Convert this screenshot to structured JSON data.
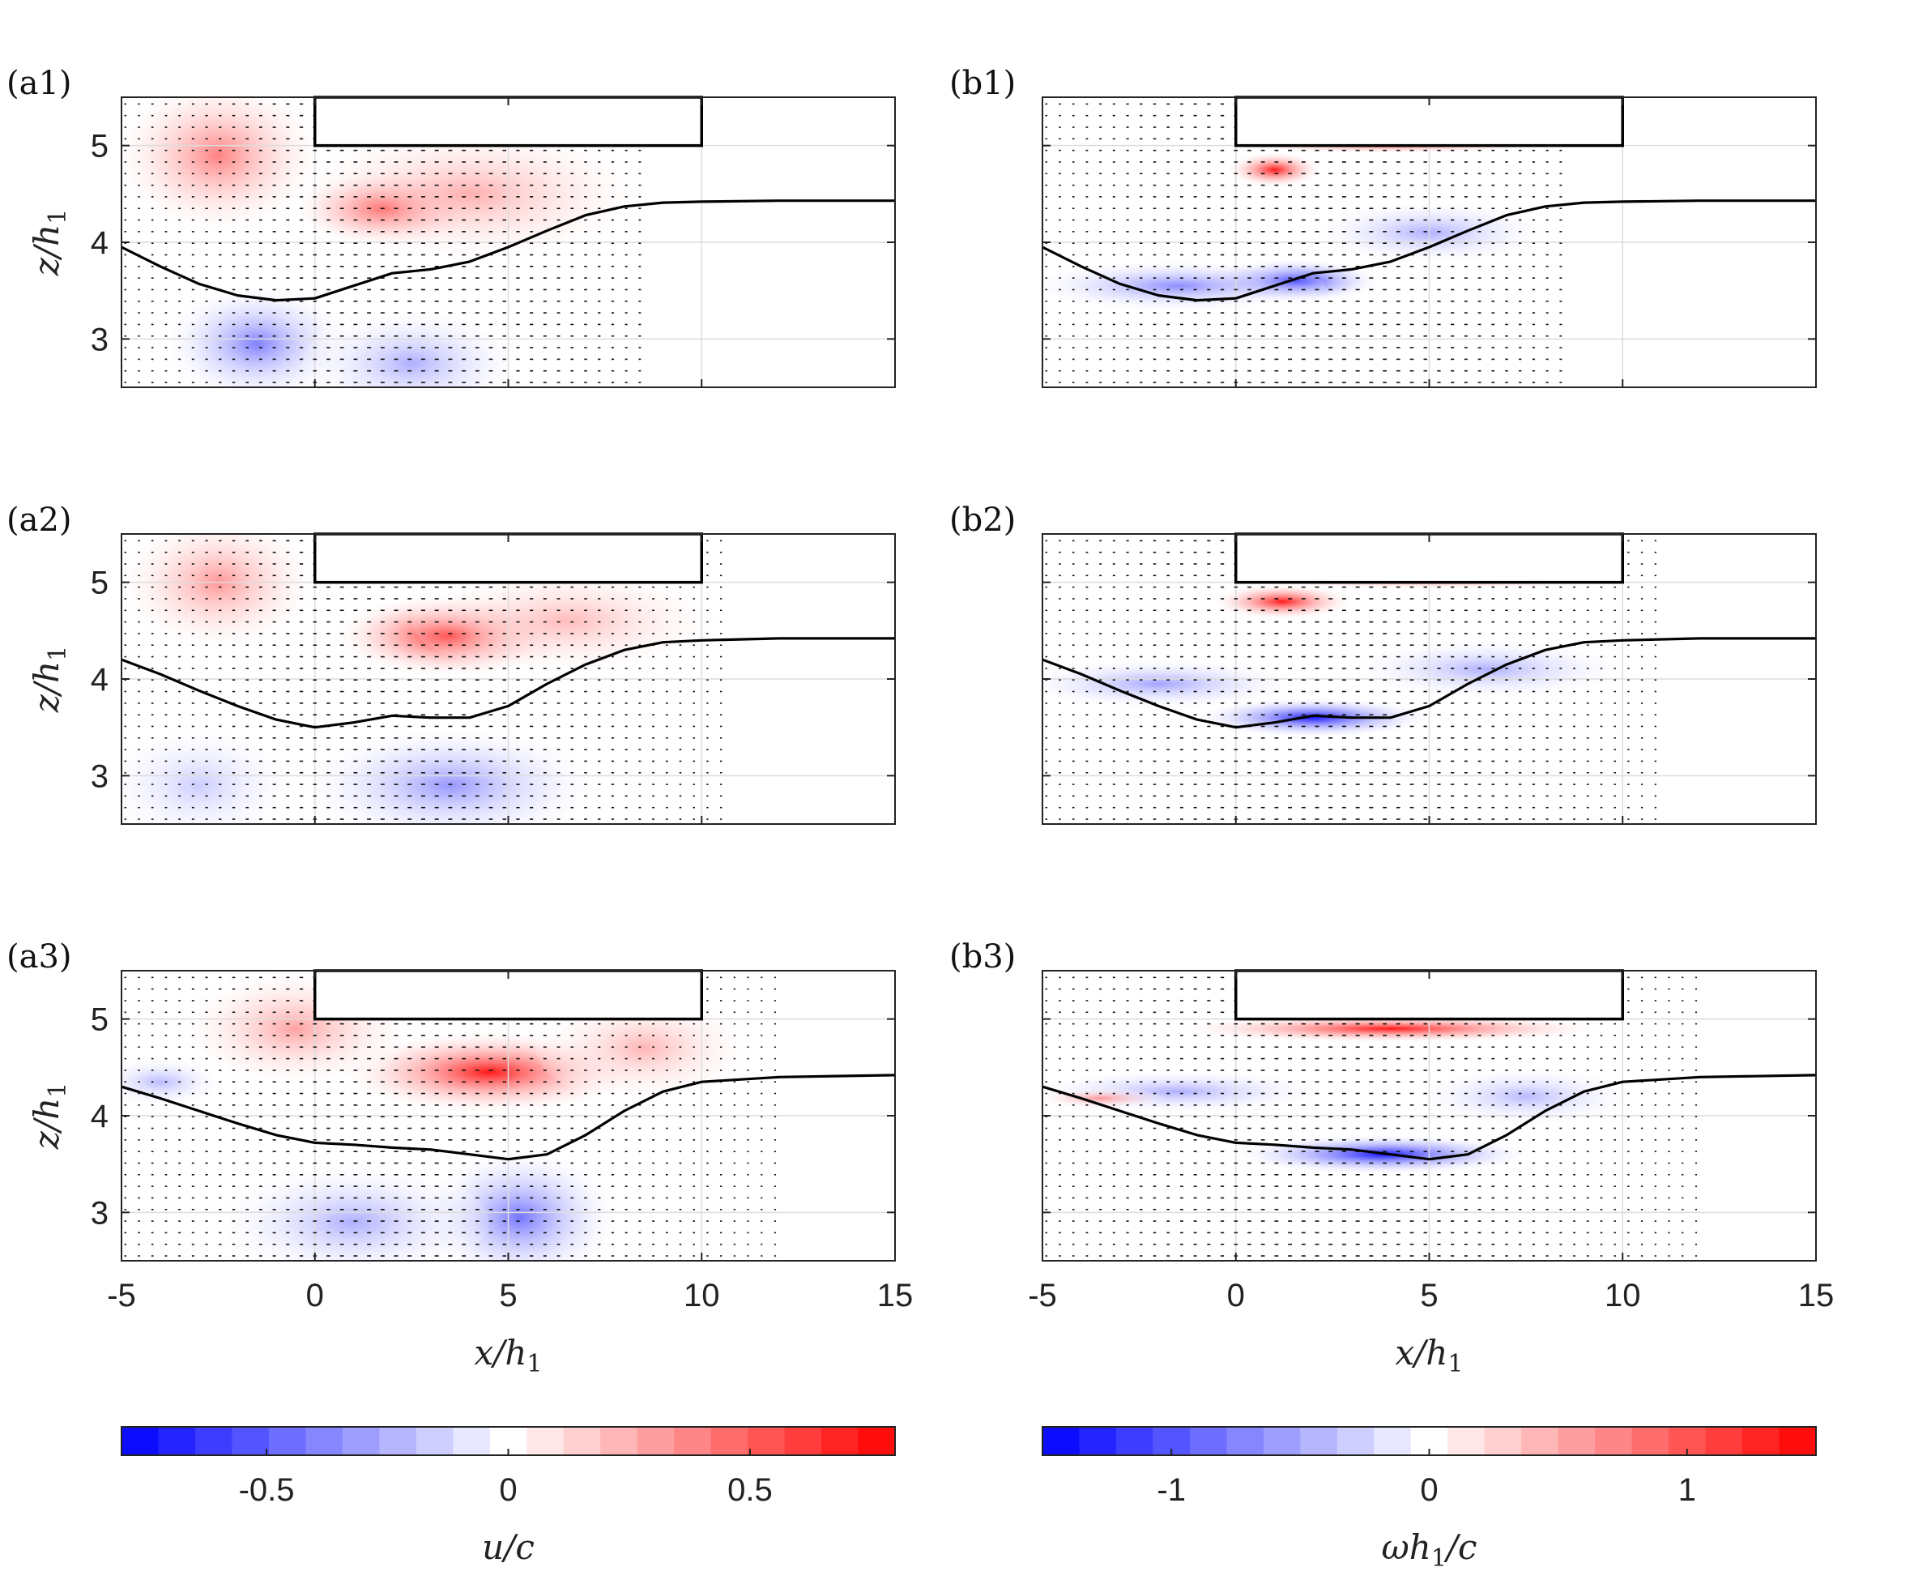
{
  "chart_data": {
    "type": "contour-quiver",
    "x_range": [
      -5,
      15
    ],
    "z_range": [
      2.5,
      5.5
    ],
    "x_ticks": [
      -5,
      0,
      5,
      10,
      15
    ],
    "z_ticks": [
      3,
      4,
      5
    ],
    "xlabel": "x/h",
    "xlabel_sub": "1",
    "ylabel": "z/h",
    "ylabel_sub": "1",
    "obstacle": {
      "x": [
        0,
        10
      ],
      "z": [
        5.0,
        5.5
      ]
    },
    "panels": [
      {
        "id": "a1",
        "label": "(a1)",
        "field": "u/c",
        "interface_x": [
          -5,
          -4,
          -3,
          -2,
          -1,
          0,
          1,
          2,
          3,
          4,
          5,
          6,
          7,
          8,
          9,
          10,
          12,
          15
        ],
        "interface_z": [
          3.95,
          3.75,
          3.57,
          3.45,
          3.4,
          3.42,
          3.55,
          3.68,
          3.72,
          3.8,
          3.95,
          4.12,
          4.28,
          4.37,
          4.41,
          4.42,
          4.43,
          4.43
        ]
      },
      {
        "id": "a2",
        "label": "(a2)",
        "field": "u/c",
        "interface_x": [
          -5,
          -4,
          -3,
          -2,
          -1,
          0,
          1,
          2,
          3,
          4,
          5,
          6,
          7,
          8,
          9,
          10,
          12,
          15
        ],
        "interface_z": [
          4.2,
          4.05,
          3.88,
          3.72,
          3.58,
          3.5,
          3.55,
          3.62,
          3.6,
          3.6,
          3.72,
          3.95,
          4.15,
          4.3,
          4.38,
          4.4,
          4.42,
          4.42
        ]
      },
      {
        "id": "a3",
        "label": "(a3)",
        "field": "u/c",
        "interface_x": [
          -5,
          -4,
          -3,
          -2,
          -1,
          0,
          1,
          2,
          3,
          4,
          5,
          6,
          7,
          8,
          9,
          10,
          12,
          15
        ],
        "interface_z": [
          4.3,
          4.18,
          4.05,
          3.92,
          3.8,
          3.72,
          3.7,
          3.67,
          3.65,
          3.6,
          3.55,
          3.6,
          3.8,
          4.05,
          4.25,
          4.35,
          4.4,
          4.42
        ]
      },
      {
        "id": "b1",
        "label": "(b1)",
        "field": "ωh1/c",
        "interface_x": [
          -5,
          -4,
          -3,
          -2,
          -1,
          0,
          1,
          2,
          3,
          4,
          5,
          6,
          7,
          8,
          9,
          10,
          12,
          15
        ],
        "interface_z": [
          3.95,
          3.75,
          3.57,
          3.45,
          3.4,
          3.42,
          3.55,
          3.68,
          3.72,
          3.8,
          3.95,
          4.12,
          4.28,
          4.37,
          4.41,
          4.42,
          4.43,
          4.43
        ]
      },
      {
        "id": "b2",
        "label": "(b2)",
        "field": "ωh1/c",
        "interface_x": [
          -5,
          -4,
          -3,
          -2,
          -1,
          0,
          1,
          2,
          3,
          4,
          5,
          6,
          7,
          8,
          9,
          10,
          12,
          15
        ],
        "interface_z": [
          4.2,
          4.05,
          3.88,
          3.72,
          3.58,
          3.5,
          3.55,
          3.62,
          3.6,
          3.6,
          3.72,
          3.95,
          4.15,
          4.3,
          4.38,
          4.4,
          4.42,
          4.42
        ]
      },
      {
        "id": "b3",
        "label": "(b3)",
        "field": "ωh1/c",
        "interface_x": [
          -5,
          -4,
          -3,
          -2,
          -1,
          0,
          1,
          2,
          3,
          4,
          5,
          6,
          7,
          8,
          9,
          10,
          12,
          15
        ],
        "interface_z": [
          4.3,
          4.18,
          4.05,
          3.92,
          3.8,
          3.72,
          3.7,
          3.67,
          3.65,
          3.6,
          3.55,
          3.6,
          3.8,
          4.05,
          4.25,
          4.35,
          4.4,
          4.42
        ]
      }
    ],
    "colorbars": [
      {
        "id": "u",
        "label": "u/c",
        "range": [
          -0.8,
          0.8
        ],
        "ticks": [
          -0.5,
          0,
          0.5
        ],
        "tick_labels": [
          "-0.5",
          "0",
          "0.5"
        ],
        "levels": 21
      },
      {
        "id": "w",
        "label": "ωh",
        "label_sub": "1",
        "label_tail": "/c",
        "range": [
          -1.5,
          1.5
        ],
        "ticks": [
          -1,
          0,
          1
        ],
        "tick_labels": [
          "-1",
          "0",
          "1"
        ],
        "levels": 21
      }
    ],
    "colors": {
      "negative": "#0000ff",
      "positive": "#ff0000",
      "zero": "#ffffff",
      "grid": "#dcdcdc",
      "line": "#000000"
    }
  }
}
